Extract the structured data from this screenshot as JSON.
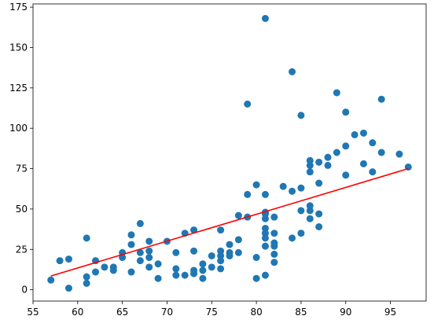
{
  "chart_data": {
    "type": "scatter",
    "title": "",
    "xlabel": "",
    "ylabel": "",
    "xlim": [
      55,
      99
    ],
    "ylim": [
      -7,
      177
    ],
    "grid": false,
    "xticks": [
      55,
      60,
      65,
      70,
      75,
      80,
      85,
      90,
      95
    ],
    "yticks": [
      0,
      25,
      50,
      75,
      100,
      125,
      150,
      175
    ],
    "colors": {
      "points": "#1f77b4",
      "fit_line": "#ff0000"
    },
    "series": [
      {
        "type": "scatter",
        "x": [
          57,
          58,
          59,
          59,
          61,
          61,
          61,
          62,
          62,
          63,
          64,
          64,
          65,
          65,
          66,
          66,
          66,
          67,
          67,
          67,
          68,
          68,
          68,
          68,
          69,
          69,
          70,
          71,
          71,
          71,
          72,
          72,
          73,
          73,
          73,
          73,
          74,
          74,
          74,
          75,
          75,
          76,
          76,
          76,
          76,
          76,
          77,
          77,
          77,
          78,
          78,
          78,
          79,
          79,
          79,
          80,
          80,
          80,
          81,
          81,
          81,
          81,
          81,
          81,
          81,
          81,
          81,
          81,
          82,
          82,
          82,
          82,
          82,
          82,
          83,
          84,
          84,
          84,
          85,
          85,
          85,
          85,
          86,
          86,
          86,
          86,
          86,
          86,
          87,
          87,
          87,
          87,
          88,
          88,
          89,
          89,
          90,
          90,
          90,
          91,
          92,
          92,
          93,
          93,
          94,
          94,
          96,
          97
        ],
        "y": [
          6,
          18,
          1,
          19,
          8,
          4,
          32,
          11,
          18,
          14,
          12,
          14,
          20,
          23,
          11,
          28,
          34,
          18,
          23,
          41,
          14,
          20,
          24,
          30,
          7,
          16,
          30,
          9,
          13,
          23,
          9,
          35,
          10,
          12,
          24,
          37,
          7,
          12,
          16,
          14,
          21,
          13,
          18,
          21,
          24,
          37,
          21,
          23,
          28,
          23,
          31,
          46,
          45,
          59,
          115,
          7,
          20,
          65,
          9,
          27,
          32,
          35,
          38,
          44,
          47,
          48,
          59,
          168,
          17,
          22,
          27,
          29,
          35,
          45,
          64,
          32,
          61,
          135,
          35,
          49,
          63,
          108,
          44,
          49,
          52,
          73,
          77,
          80,
          39,
          47,
          66,
          79,
          77,
          82,
          85,
          122,
          71,
          89,
          110,
          96,
          78,
          97,
          73,
          91,
          85,
          118,
          84,
          76
        ]
      },
      {
        "type": "line",
        "x": [
          57,
          97
        ],
        "y": [
          8.5,
          75
        ]
      }
    ]
  }
}
